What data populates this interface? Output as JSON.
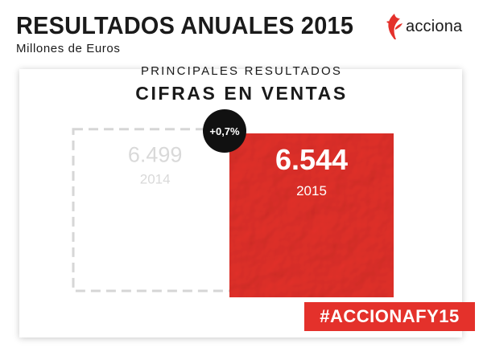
{
  "header": {
    "title": "RESULTADOS ANUALES 2015",
    "subtitle": "Millones de Euros",
    "logo_text": "acciona"
  },
  "card": {
    "kicker": "PRINCIPALES RESULTADOS",
    "title": "CIFRAS EN VENTAS"
  },
  "hashtag": "#ACCIONAFY15",
  "chart_data": {
    "type": "bar",
    "categories": [
      "2014",
      "2015"
    ],
    "values": [
      6499,
      6544
    ],
    "value_labels": [
      "6.499",
      "6.544"
    ],
    "change_label": "+0,7%",
    "title": "CIFRAS EN VENTAS",
    "xlabel": "",
    "ylabel": "",
    "colors": {
      "previous_outline": "#d6d6d6",
      "previous_text": "#d9d9d9",
      "current_fill": "#e4312b",
      "current_text": "#ffffff",
      "badge": "#111111"
    }
  }
}
